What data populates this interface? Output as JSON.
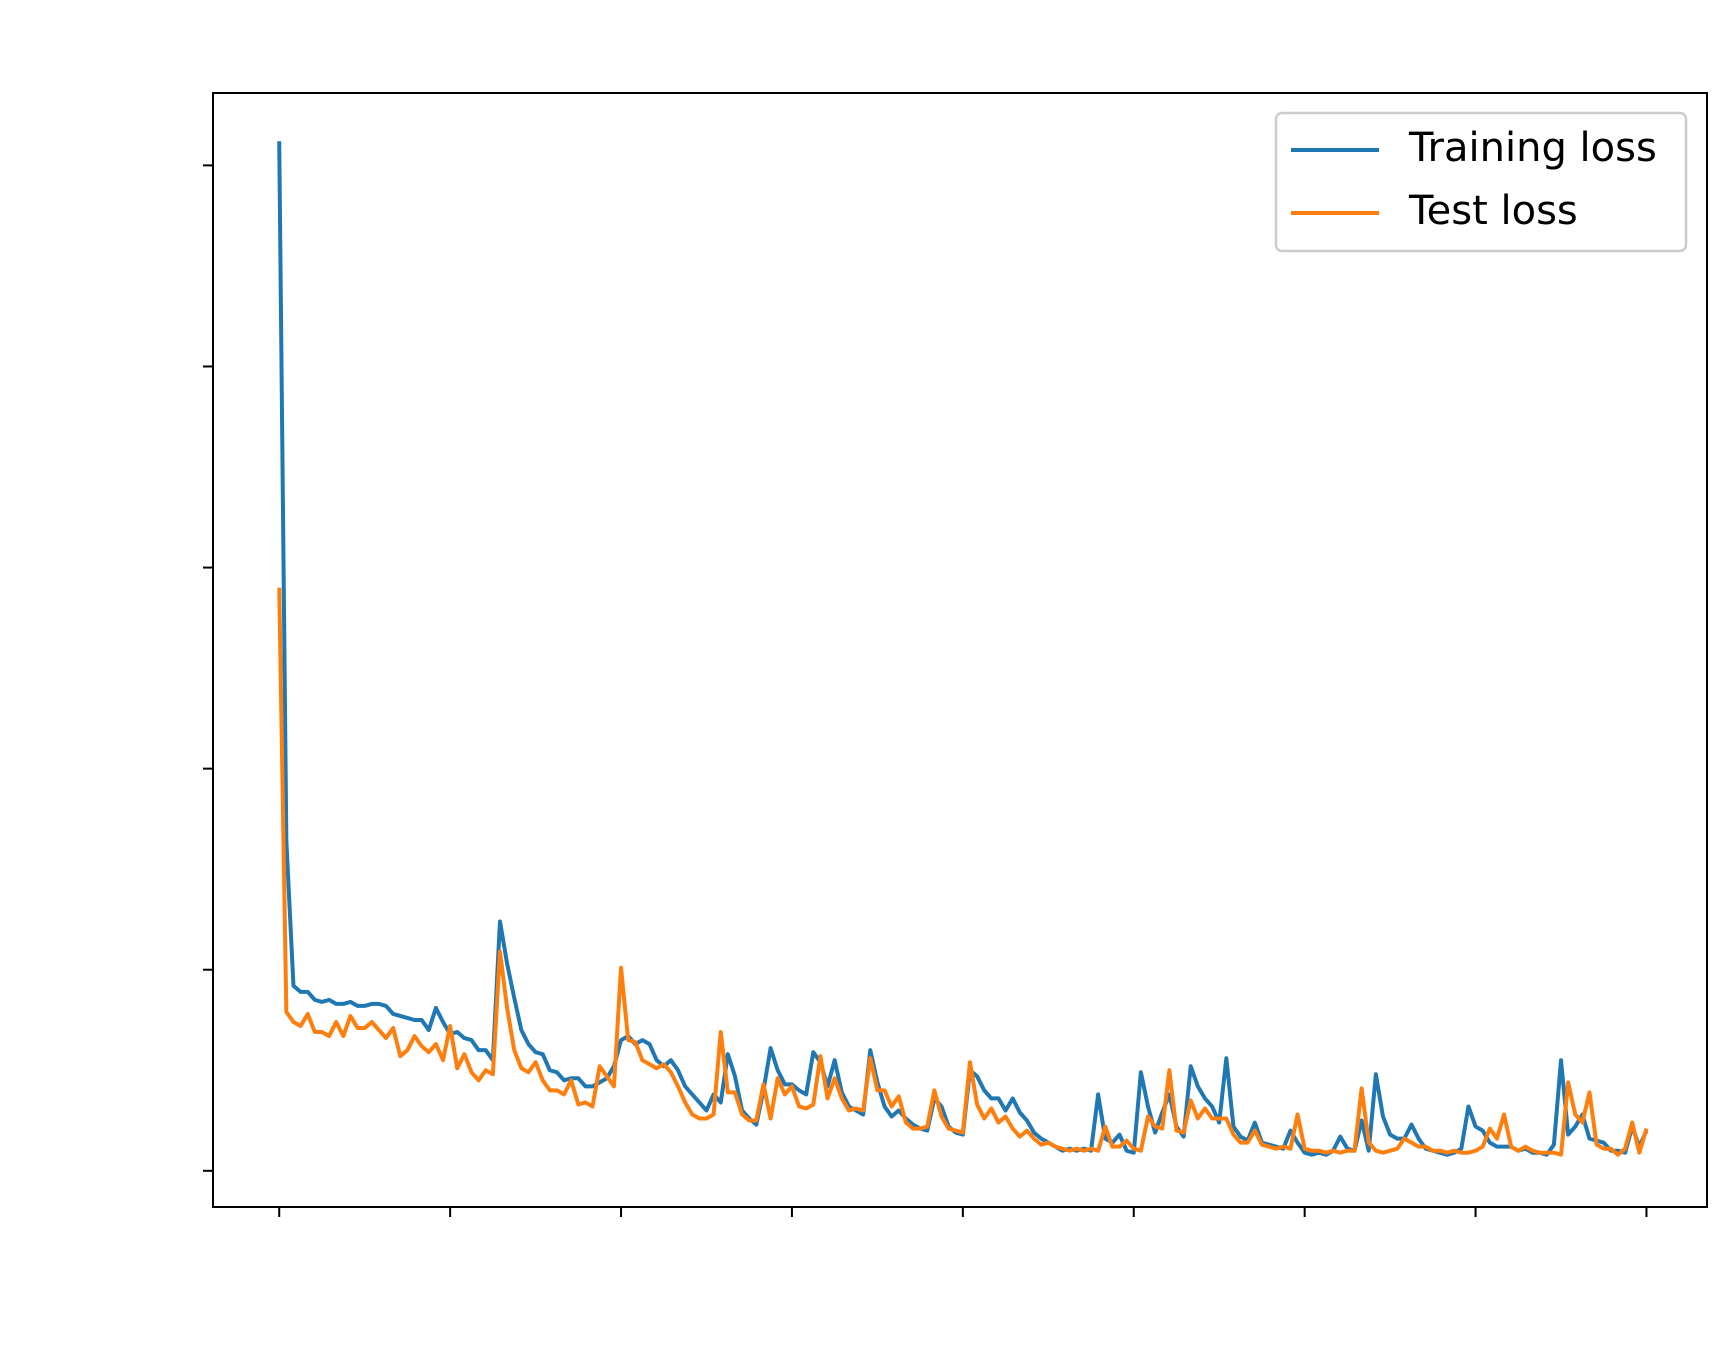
{
  "chart_data": {
    "type": "line",
    "x": [
      0,
      1,
      2,
      3,
      4,
      5,
      6,
      7,
      8,
      9,
      10,
      11,
      12,
      13,
      14,
      15,
      16,
      17,
      18,
      19,
      20,
      21,
      22,
      23,
      24,
      25,
      26,
      27,
      28,
      29,
      30,
      31,
      32,
      33,
      34,
      35,
      36,
      37,
      38,
      39,
      40,
      41,
      42,
      43,
      44,
      45,
      46,
      47,
      48,
      49,
      50,
      51,
      52,
      53,
      54,
      55,
      56,
      57,
      58,
      59,
      60,
      61,
      62,
      63,
      64,
      65,
      66,
      67,
      68,
      69,
      70,
      71,
      72,
      73,
      74,
      75,
      76,
      77,
      78,
      79,
      80,
      81,
      82,
      83,
      84,
      85,
      86,
      87,
      88,
      89,
      90,
      91,
      92,
      93,
      94,
      95,
      96,
      97,
      98,
      99,
      100,
      101,
      102,
      103,
      104,
      105,
      106,
      107,
      108,
      109,
      110,
      111,
      112,
      113,
      114,
      115,
      116,
      117,
      118,
      119,
      120,
      121,
      122,
      123,
      124,
      125,
      126,
      127,
      128,
      129,
      130,
      131,
      132,
      133,
      134,
      135,
      136,
      137,
      138,
      139,
      140,
      141,
      142,
      143,
      144,
      145,
      146,
      147,
      148,
      149,
      150,
      151,
      152,
      153,
      154,
      155,
      156,
      157,
      158,
      159,
      160,
      161,
      162,
      163,
      164,
      165,
      166,
      167,
      168,
      169,
      170,
      171,
      172,
      173,
      174,
      175,
      176,
      177,
      178,
      179,
      180,
      181,
      182,
      183,
      184,
      185,
      186,
      187,
      188,
      189,
      190,
      191,
      192
    ],
    "series": [
      {
        "name": "Training loss",
        "color": "#1f77b4",
        "values": [
          5.12,
          1.64,
          0.92,
          0.89,
          0.89,
          0.85,
          0.84,
          0.85,
          0.83,
          0.83,
          0.84,
          0.82,
          0.82,
          0.83,
          0.83,
          0.82,
          0.78,
          0.77,
          0.76,
          0.75,
          0.75,
          0.7,
          0.81,
          0.74,
          0.68,
          0.69,
          0.66,
          0.65,
          0.6,
          0.6,
          0.55,
          1.24,
          1.03,
          0.86,
          0.7,
          0.63,
          0.59,
          0.58,
          0.5,
          0.49,
          0.45,
          0.46,
          0.46,
          0.42,
          0.42,
          0.44,
          0.46,
          0.52,
          0.65,
          0.67,
          0.63,
          0.65,
          0.63,
          0.55,
          0.52,
          0.55,
          0.5,
          0.42,
          0.38,
          0.34,
          0.3,
          0.38,
          0.34,
          0.58,
          0.47,
          0.3,
          0.26,
          0.23,
          0.4,
          0.61,
          0.5,
          0.43,
          0.43,
          0.4,
          0.38,
          0.59,
          0.54,
          0.42,
          0.55,
          0.39,
          0.32,
          0.3,
          0.28,
          0.6,
          0.44,
          0.32,
          0.27,
          0.3,
          0.26,
          0.23,
          0.21,
          0.2,
          0.36,
          0.32,
          0.22,
          0.19,
          0.18,
          0.5,
          0.47,
          0.4,
          0.36,
          0.36,
          0.3,
          0.36,
          0.29,
          0.25,
          0.19,
          0.16,
          0.14,
          0.12,
          0.1,
          0.11,
          0.1,
          0.11,
          0.1,
          0.38,
          0.16,
          0.14,
          0.18,
          0.1,
          0.09,
          0.49,
          0.32,
          0.19,
          0.29,
          0.38,
          0.22,
          0.17,
          0.52,
          0.42,
          0.36,
          0.32,
          0.24,
          0.56,
          0.22,
          0.17,
          0.15,
          0.24,
          0.14,
          0.13,
          0.12,
          0.11,
          0.2,
          0.14,
          0.09,
          0.08,
          0.09,
          0.08,
          0.1,
          0.17,
          0.11,
          0.1,
          0.25,
          0.1,
          0.48,
          0.27,
          0.18,
          0.16,
          0.16,
          0.23,
          0.16,
          0.11,
          0.1,
          0.09,
          0.08,
          0.09,
          0.11,
          0.32,
          0.22,
          0.2,
          0.14,
          0.12,
          0.12,
          0.12,
          0.1,
          0.11,
          0.09,
          0.09,
          0.08,
          0.13,
          0.55,
          0.18,
          0.22,
          0.28,
          0.16,
          0.15,
          0.14,
          0.1,
          0.1,
          0.09,
          0.22,
          0.12,
          0.2
        ]
      },
      {
        "name": "Test loss",
        "color": "#ff7f0e",
        "values": [
          2.9,
          0.79,
          0.74,
          0.72,
          0.78,
          0.69,
          0.69,
          0.67,
          0.74,
          0.67,
          0.77,
          0.71,
          0.71,
          0.74,
          0.7,
          0.66,
          0.71,
          0.57,
          0.6,
          0.67,
          0.62,
          0.59,
          0.63,
          0.55,
          0.72,
          0.51,
          0.58,
          0.49,
          0.45,
          0.5,
          0.48,
          1.09,
          0.81,
          0.6,
          0.51,
          0.49,
          0.54,
          0.45,
          0.4,
          0.4,
          0.38,
          0.45,
          0.33,
          0.34,
          0.32,
          0.52,
          0.47,
          0.42,
          1.01,
          0.65,
          0.64,
          0.55,
          0.53,
          0.51,
          0.53,
          0.49,
          0.42,
          0.34,
          0.28,
          0.26,
          0.26,
          0.28,
          0.69,
          0.39,
          0.39,
          0.28,
          0.25,
          0.25,
          0.43,
          0.26,
          0.46,
          0.38,
          0.42,
          0.32,
          0.31,
          0.33,
          0.57,
          0.36,
          0.46,
          0.36,
          0.3,
          0.31,
          0.3,
          0.56,
          0.4,
          0.4,
          0.32,
          0.37,
          0.24,
          0.21,
          0.21,
          0.22,
          0.4,
          0.27,
          0.21,
          0.2,
          0.19,
          0.54,
          0.33,
          0.26,
          0.31,
          0.24,
          0.27,
          0.21,
          0.17,
          0.2,
          0.16,
          0.13,
          0.14,
          0.12,
          0.11,
          0.1,
          0.11,
          0.1,
          0.11,
          0.1,
          0.22,
          0.12,
          0.12,
          0.15,
          0.11,
          0.1,
          0.27,
          0.22,
          0.21,
          0.5,
          0.2,
          0.19,
          0.35,
          0.26,
          0.31,
          0.26,
          0.26,
          0.26,
          0.18,
          0.14,
          0.14,
          0.2,
          0.13,
          0.12,
          0.11,
          0.12,
          0.11,
          0.28,
          0.11,
          0.1,
          0.1,
          0.09,
          0.1,
          0.09,
          0.1,
          0.1,
          0.41,
          0.14,
          0.1,
          0.09,
          0.1,
          0.11,
          0.16,
          0.14,
          0.12,
          0.12,
          0.1,
          0.1,
          0.09,
          0.1,
          0.09,
          0.09,
          0.1,
          0.12,
          0.21,
          0.16,
          0.28,
          0.12,
          0.1,
          0.12,
          0.1,
          0.09,
          0.09,
          0.09,
          0.08,
          0.44,
          0.28,
          0.24,
          0.39,
          0.13,
          0.11,
          0.11,
          0.08,
          0.11,
          0.24,
          0.09,
          0.21
        ]
      }
    ],
    "xlim": [
      -9.3,
      200.5
    ],
    "xticks": [
      0,
      24,
      48,
      72,
      96,
      120,
      144,
      168,
      192
    ],
    "ylim": [
      -0.18,
      5.36
    ],
    "yticks": [
      0,
      1,
      2,
      3,
      4,
      5
    ],
    "legend": "upper right"
  }
}
